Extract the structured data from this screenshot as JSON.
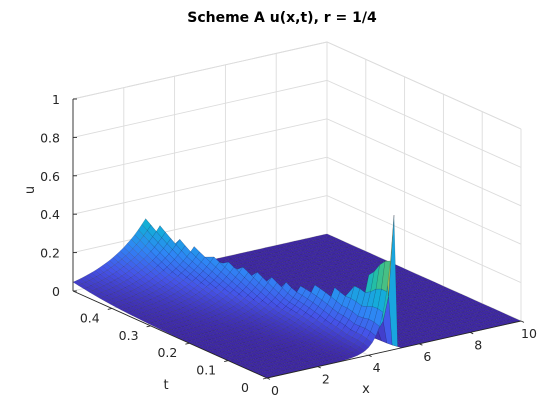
{
  "chart_data": {
    "type": "surface",
    "title": "Scheme A u(x,t), r = 1/4",
    "xlabel": "x",
    "ylabel": "t",
    "zlabel": "u",
    "xlim": [
      0,
      10
    ],
    "ylim": [
      0,
      0.5
    ],
    "zlim": [
      0,
      1
    ],
    "xticks": [
      "0",
      "2",
      "4",
      "6",
      "8",
      "10"
    ],
    "yticks": [
      "0",
      "0.1",
      "0.2",
      "0.3",
      "0.4"
    ],
    "zticks": [
      "0",
      "0.2",
      "0.4",
      "0.6",
      "0.8",
      "1"
    ],
    "grid": true,
    "colormap": "parula",
    "colormap_stops": [
      "#3e26a8",
      "#4554e9",
      "#2f86f5",
      "#14adda",
      "#25c09f",
      "#7cbf5a",
      "#d7ba41",
      "#fbd32a",
      "#f9fb0e"
    ],
    "surface_profile": [
      {
        "t": 0.0,
        "x_peak": 5.0,
        "u_peak": 0.7
      },
      {
        "t": 0.05,
        "x_peak": 4.9,
        "u_peak": 0.37
      },
      {
        "t": 0.1,
        "x_peak": 4.7,
        "u_peak": 0.25
      },
      {
        "t": 0.2,
        "x_peak": 4.3,
        "u_peak": 0.18
      },
      {
        "t": 0.3,
        "x_peak": 3.8,
        "u_peak": 0.2
      },
      {
        "t": 0.4,
        "x_peak": 3.3,
        "u_peak": 0.22
      },
      {
        "t": 0.5,
        "x_peak": 2.9,
        "u_peak": 0.3
      }
    ]
  }
}
